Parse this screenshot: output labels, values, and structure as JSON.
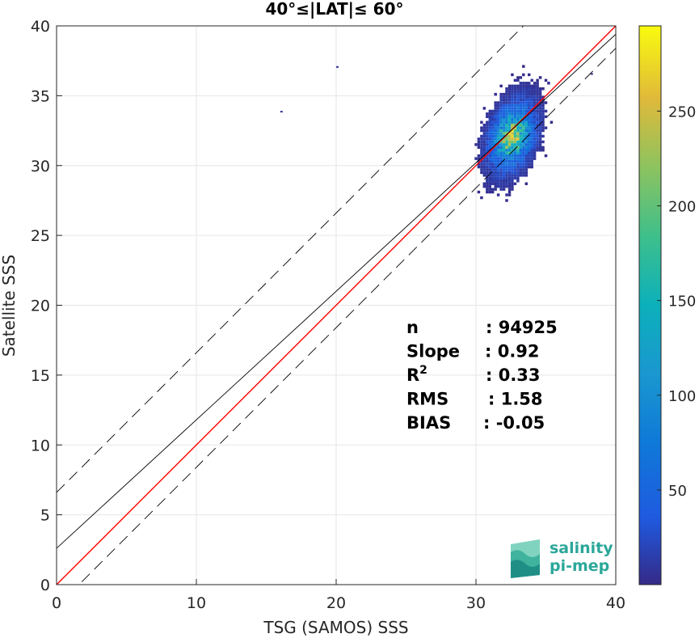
{
  "chart_data": {
    "type": "heatmap",
    "title": "40°≤|LAT|≤ 60°",
    "xlabel": "TSG (SAMOS) SSS",
    "ylabel": "Satellite SSS",
    "xlim": [
      0,
      40
    ],
    "ylim": [
      0,
      40
    ],
    "xticks": [
      "0",
      "10",
      "20",
      "30",
      "40"
    ],
    "yticks": [
      "0",
      "5",
      "10",
      "15",
      "20",
      "25",
      "30",
      "35",
      "40"
    ],
    "grid": true,
    "density_cluster": {
      "description_values": "2D histogram of co-located points",
      "center": [
        32.5,
        32.0
      ],
      "x_range": [
        27.5,
        38.5
      ],
      "y_range": [
        23.0,
        40.0
      ],
      "peak_count": 220
    },
    "outliers": [
      [
        16.0,
        33.8
      ],
      [
        20.0,
        37.0
      ],
      [
        38.2,
        36.5
      ]
    ],
    "lines": [
      {
        "name": "1:1",
        "slope": 1.0,
        "intercept": 0.0,
        "color": "#ff0000",
        "style": "solid"
      },
      {
        "name": "fit",
        "slope": 0.92,
        "intercept": 2.6,
        "color": "#000000",
        "style": "solid"
      },
      {
        "name": "upper bound",
        "slope": 1.0,
        "intercept": 6.6,
        "color": "#000000",
        "style": "dashed"
      },
      {
        "name": "lower bound",
        "slope": 1.0,
        "intercept": -1.6,
        "color": "#000000",
        "style": "dashed"
      }
    ],
    "colorbar": {
      "range": [
        0,
        295
      ],
      "ticks": [
        "50",
        "100",
        "150",
        "200",
        "250"
      ],
      "colormap": "parula"
    },
    "stats": [
      {
        "label": "n",
        "value": ": 94925"
      },
      {
        "label": "Slope",
        "value": ": 0.92"
      },
      {
        "label": "R",
        "sup": "2",
        "value": ": 0.33"
      },
      {
        "label": "RMS",
        "value": ": 1.58"
      },
      {
        "label": "BIAS",
        "value": ": -0.05"
      }
    ]
  },
  "logo": {
    "line1": "salinity",
    "line2": "pi-mep"
  }
}
